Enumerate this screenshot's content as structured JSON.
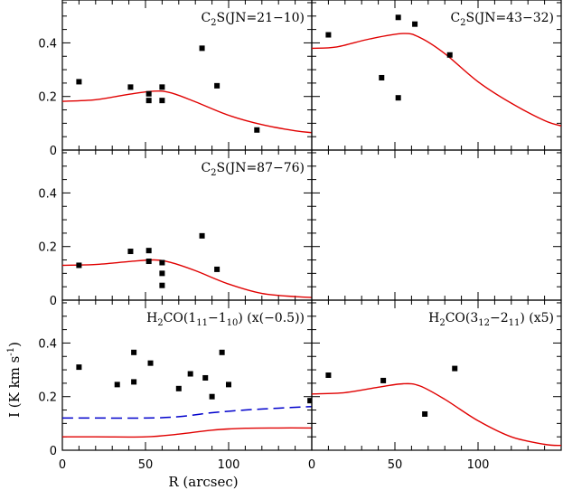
{
  "chart_data": {
    "type": "scatter",
    "x_axis": {
      "label": "R (arcsec)",
      "range": [
        0,
        150
      ],
      "ticks": [
        0,
        50,
        100
      ]
    },
    "y_axis": {
      "label": "I (K km s",
      "label_sup": "-1",
      "label_end": ")",
      "range": [
        0,
        0.56
      ],
      "ticks": [
        0,
        0.2,
        0.4
      ],
      "tick_labels": [
        "0",
        "0.2",
        "0.4"
      ]
    },
    "panels": [
      {
        "row": 0,
        "col": 0,
        "title_parts": [
          [
            "C",
            "n"
          ],
          [
            "2",
            "sub"
          ],
          [
            "S(JN=21−10)",
            "n"
          ]
        ],
        "points": [
          [
            10,
            0.255
          ],
          [
            41,
            0.235
          ],
          [
            52,
            0.21
          ],
          [
            52,
            0.185
          ],
          [
            60,
            0.235
          ],
          [
            60,
            0.185
          ],
          [
            84,
            0.38
          ],
          [
            93,
            0.24
          ],
          [
            117,
            0.075
          ]
        ],
        "model": [
          [
            0,
            0.182
          ],
          [
            20,
            0.188
          ],
          [
            40,
            0.208
          ],
          [
            55,
            0.22
          ],
          [
            65,
            0.214
          ],
          [
            80,
            0.18
          ],
          [
            100,
            0.13
          ],
          [
            120,
            0.095
          ],
          [
            140,
            0.072
          ],
          [
            150,
            0.065
          ]
        ]
      },
      {
        "row": 0,
        "col": 1,
        "title_parts": [
          [
            "C",
            "n"
          ],
          [
            "2",
            "sub"
          ],
          [
            "S(JN=43−32)",
            "n"
          ]
        ],
        "points": [
          [
            10,
            0.43
          ],
          [
            42,
            0.27
          ],
          [
            52,
            0.195
          ],
          [
            52,
            0.495
          ],
          [
            62,
            0.47
          ],
          [
            83,
            0.355
          ]
        ],
        "model": [
          [
            0,
            0.38
          ],
          [
            15,
            0.385
          ],
          [
            35,
            0.415
          ],
          [
            55,
            0.435
          ],
          [
            65,
            0.42
          ],
          [
            80,
            0.36
          ],
          [
            100,
            0.255
          ],
          [
            120,
            0.175
          ],
          [
            140,
            0.11
          ],
          [
            150,
            0.09
          ]
        ]
      },
      {
        "row": 1,
        "col": 0,
        "title_parts": [
          [
            "C",
            "n"
          ],
          [
            "2",
            "sub"
          ],
          [
            "S(JN=87−76)",
            "n"
          ]
        ],
        "points": [
          [
            10,
            0.13
          ],
          [
            41,
            0.182
          ],
          [
            52,
            0.185
          ],
          [
            52,
            0.145
          ],
          [
            60,
            0.14
          ],
          [
            60,
            0.1
          ],
          [
            60,
            0.055
          ],
          [
            84,
            0.24
          ],
          [
            93,
            0.115
          ]
        ],
        "model": [
          [
            0,
            0.13
          ],
          [
            20,
            0.133
          ],
          [
            40,
            0.144
          ],
          [
            55,
            0.15
          ],
          [
            65,
            0.141
          ],
          [
            80,
            0.11
          ],
          [
            100,
            0.06
          ],
          [
            120,
            0.025
          ],
          [
            140,
            0.013
          ],
          [
            150,
            0.01
          ]
        ]
      },
      {
        "row": 2,
        "col": 0,
        "title_parts": [
          [
            "H",
            "n"
          ],
          [
            "2",
            "sub"
          ],
          [
            "CO(1",
            "n"
          ],
          [
            "11",
            "sub"
          ],
          [
            "−1",
            "n"
          ],
          [
            "10",
            "sub"
          ],
          [
            ")  (x(−0.5))",
            "n"
          ]
        ],
        "points": [
          [
            10,
            0.31
          ],
          [
            33,
            0.245
          ],
          [
            43,
            0.365
          ],
          [
            43,
            0.255
          ],
          [
            53,
            0.325
          ],
          [
            70,
            0.23
          ],
          [
            77,
            0.285
          ],
          [
            86,
            0.27
          ],
          [
            90,
            0.2
          ],
          [
            96,
            0.365
          ],
          [
            100,
            0.245
          ],
          [
            149,
            0.185
          ]
        ],
        "model": [
          [
            0,
            0.05
          ],
          [
            20,
            0.05
          ],
          [
            50,
            0.05
          ],
          [
            70,
            0.06
          ],
          [
            90,
            0.075
          ],
          [
            110,
            0.082
          ],
          [
            130,
            0.083
          ],
          [
            150,
            0.083
          ]
        ],
        "model_dashed": [
          [
            0,
            0.12
          ],
          [
            20,
            0.12
          ],
          [
            50,
            0.12
          ],
          [
            70,
            0.125
          ],
          [
            90,
            0.14
          ],
          [
            110,
            0.15
          ],
          [
            130,
            0.157
          ],
          [
            150,
            0.163
          ]
        ]
      },
      {
        "row": 2,
        "col": 1,
        "title_parts": [
          [
            "H",
            "n"
          ],
          [
            "2",
            "sub"
          ],
          [
            "CO(3",
            "n"
          ],
          [
            "12",
            "sub"
          ],
          [
            "−2",
            "n"
          ],
          [
            "11",
            "sub"
          ],
          [
            ")  (x5)",
            "n"
          ]
        ],
        "points": [
          [
            10,
            0.28
          ],
          [
            43,
            0.26
          ],
          [
            68,
            0.135
          ],
          [
            86,
            0.305
          ]
        ],
        "model": [
          [
            0,
            0.21
          ],
          [
            20,
            0.215
          ],
          [
            40,
            0.235
          ],
          [
            55,
            0.248
          ],
          [
            65,
            0.24
          ],
          [
            80,
            0.19
          ],
          [
            100,
            0.11
          ],
          [
            120,
            0.05
          ],
          [
            140,
            0.022
          ],
          [
            150,
            0.018
          ]
        ]
      }
    ],
    "empty_panels": [
      {
        "row": 1,
        "col": 1
      }
    ],
    "colors": {
      "model": "#e00000",
      "model_dashed": "#0000cc",
      "points": "#000000"
    }
  }
}
